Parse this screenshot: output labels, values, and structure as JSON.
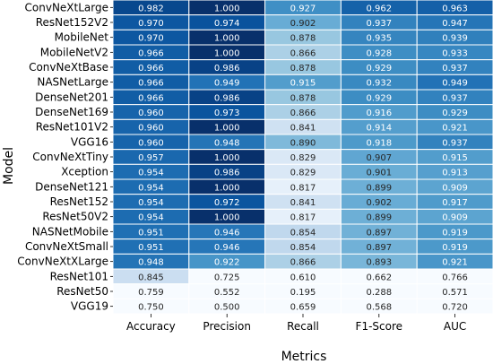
{
  "chart_data": {
    "type": "heatmap",
    "xlabel": "Metrics",
    "ylabel": "Model",
    "columns": [
      "Accuracy",
      "Precision",
      "Recall",
      "F1-Score",
      "AUC"
    ],
    "rows": [
      "ConvNeXtLarge",
      "ResNet152V2",
      "MobileNet",
      "MobileNetV2",
      "ConvNeXtBase",
      "NASNetLarge",
      "DenseNet201",
      "DenseNet169",
      "ResNet101V2",
      "VGG16",
      "ConvNeXtTiny",
      "Xception",
      "DenseNet121",
      "ResNet152",
      "ResNet50V2",
      "NASNetMobile",
      "ConvNeXtSmall",
      "ConvNeXtXLarge",
      "ResNet101",
      "ResNet50",
      "VGG19"
    ],
    "values": [
      [
        "0.982",
        "1.000",
        "0.927",
        "0.962",
        "0.963"
      ],
      [
        "0.970",
        "0.974",
        "0.902",
        "0.937",
        "0.947"
      ],
      [
        "0.970",
        "1.000",
        "0.878",
        "0.935",
        "0.939"
      ],
      [
        "0.966",
        "1.000",
        "0.866",
        "0.928",
        "0.933"
      ],
      [
        "0.966",
        "0.986",
        "0.878",
        "0.929",
        "0.937"
      ],
      [
        "0.966",
        "0.949",
        "0.915",
        "0.932",
        "0.949"
      ],
      [
        "0.966",
        "0.986",
        "0.878",
        "0.929",
        "0.937"
      ],
      [
        "0.960",
        "0.973",
        "0.866",
        "0.916",
        "0.929"
      ],
      [
        "0.960",
        "1.000",
        "0.841",
        "0.914",
        "0.921"
      ],
      [
        "0.960",
        "0.948",
        "0.890",
        "0.918",
        "0.937"
      ],
      [
        "0.957",
        "1.000",
        "0.829",
        "0.907",
        "0.915"
      ],
      [
        "0.954",
        "0.986",
        "0.829",
        "0.901",
        "0.913"
      ],
      [
        "0.954",
        "1.000",
        "0.817",
        "0.899",
        "0.909"
      ],
      [
        "0.954",
        "0.972",
        "0.841",
        "0.902",
        "0.917"
      ],
      [
        "0.954",
        "1.000",
        "0.817",
        "0.899",
        "0.909"
      ],
      [
        "0.951",
        "0.946",
        "0.854",
        "0.897",
        "0.919"
      ],
      [
        "0.951",
        "0.946",
        "0.854",
        "0.897",
        "0.919"
      ],
      [
        "0.948",
        "0.922",
        "0.866",
        "0.893",
        "0.921"
      ],
      [
        "0.845",
        "0.725",
        "0.610",
        "0.662",
        "0.766"
      ],
      [
        "0.759",
        "0.552",
        "0.195",
        "0.288",
        "0.571"
      ],
      [
        "0.750",
        "0.500",
        "0.659",
        "0.568",
        "0.720"
      ]
    ],
    "colormap": "Blues",
    "color_range": [
      0.8,
      1.0
    ],
    "colors": {
      "low": "#f7fbff",
      "high": "#08306b"
    },
    "legend": "none",
    "grid": true
  }
}
